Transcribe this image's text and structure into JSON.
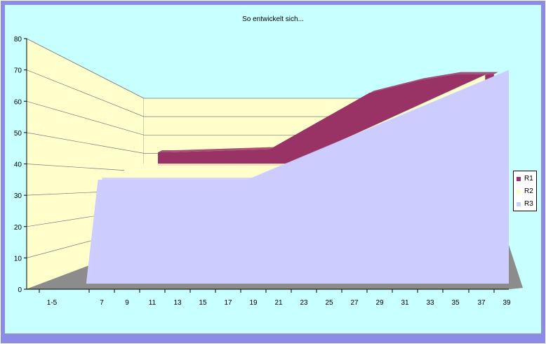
{
  "colors": {
    "outer_border": "#8C8CE6",
    "inner_background": "#C8FFFF",
    "wall": "#FFFFCC",
    "floor": "#8C8C8C",
    "gridline": "#7a7a7a",
    "R1": "#993366",
    "R2": "#FFFFCC",
    "R3": "#CCCCFF"
  },
  "chart_data": {
    "type": "area",
    "style": "3d-depth",
    "title": "So entwickelt sich...",
    "xlabel": "",
    "ylabel": "",
    "ylim": [
      0,
      80
    ],
    "y_ticks": [
      0,
      10,
      20,
      30,
      40,
      50,
      60,
      70,
      80
    ],
    "x_tick_labels": [
      "1-5",
      "7",
      "9",
      "11",
      "13",
      "15",
      "17",
      "19",
      "21",
      "23",
      "25",
      "27",
      "29",
      "31",
      "33",
      "35",
      "37",
      "39"
    ],
    "grid": true,
    "legend_position": "right",
    "series": [
      {
        "name": "R1",
        "x": [
          5,
          6,
          14,
          18,
          22,
          26,
          29,
          32
        ],
        "values": [
          35,
          35,
          36,
          45,
          54,
          58,
          60,
          60
        ]
      },
      {
        "name": "R2",
        "x": [
          5,
          18,
          34
        ],
        "values": [
          35,
          35,
          64
        ]
      },
      {
        "name": "R3",
        "x": [
          5,
          6,
          18,
          39
        ],
        "values": [
          0,
          35,
          35,
          70
        ]
      }
    ]
  }
}
